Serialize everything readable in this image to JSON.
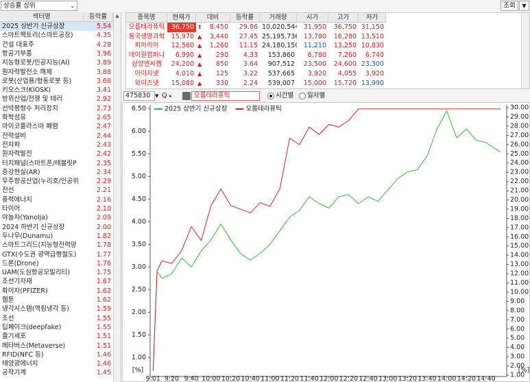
{
  "toolbar": {
    "filter": "상승률 상위",
    "query_button": "조회"
  },
  "sector_table": {
    "headers": [
      "섹터명",
      "등락률"
    ],
    "rows": [
      [
        "2025 상반기 신규상장",
        "5.54"
      ],
      [
        "스마트팩토리(스마트공장)",
        "4.35"
      ],
      [
        "건설 대표주",
        "4.28"
      ],
      [
        "항공기부품",
        "3.96"
      ],
      [
        "지능형로봇/인공지능(AI)",
        "3.89"
      ],
      [
        "원자력발전소 해체",
        "3.88"
      ],
      [
        "로봇(산업용/협동로봇 등)",
        "3.68"
      ],
      [
        "키오스크(KIOSK)",
        "3.41"
      ],
      [
        "방위산업/전쟁 및 테러",
        "2.92"
      ],
      [
        "선박평형수 처리장치",
        "2.73"
      ],
      [
        "화학섬유",
        "2.65"
      ],
      [
        "마이코플라스마 폐렴",
        "2.47"
      ],
      [
        "전력설비",
        "2.44"
      ],
      [
        "전자파",
        "2.43"
      ],
      [
        "원자력발전",
        "2.42"
      ],
      [
        "터치패널(스마트폰/태블릿P",
        "2.35"
      ],
      [
        "증강현실(AR)",
        "2.34"
      ],
      [
        "우주항공산업(누리호/인공위",
        "2.29"
      ],
      [
        "전선",
        "2.21"
      ],
      [
        "풍력에너지",
        "2.16"
      ],
      [
        "타이어",
        "2.10"
      ],
      [
        "야놀자(Yanolja)",
        "2.09"
      ],
      [
        "2024 하반기 신규상장",
        "2.00"
      ],
      [
        "두나무(Dunamu)",
        "1.82"
      ],
      [
        "스마트그리드(지능형전력망",
        "1.78"
      ],
      [
        "GTX(수도권 광역급행철도)",
        "1.77"
      ],
      [
        "드론(Drone)",
        "1.76"
      ],
      [
        "UAM(도심항공모빌리티)",
        "1.75"
      ],
      [
        "조선기자재",
        "1.67"
      ],
      [
        "화이자(PFIZER)",
        "1.62"
      ],
      [
        "웹툰",
        "1.62"
      ],
      [
        "냉각시스템(액침냉각 등)",
        "1.59"
      ],
      [
        "조선",
        "1.55"
      ],
      [
        "딥페이크(deepfake)",
        "1.55"
      ],
      [
        "줄기세포",
        "1.51"
      ],
      [
        "메타버스(Metaverse)",
        "1.51"
      ],
      [
        "RFID(NFC 등)",
        "1.46"
      ],
      [
        "태양광에너지",
        "1.46"
      ],
      [
        "공작기계",
        "1.45"
      ]
    ]
  },
  "stock_table": {
    "headers": [
      "종목명",
      "현재가",
      "대비",
      "등락률",
      "거래량",
      "시가",
      "고가",
      "저가"
    ],
    "rows": [
      [
        "오름테라퓨틱",
        "36,750",
        "8,450",
        "29.86",
        "10,020,544",
        "31,950",
        "36,750",
        "31,150"
      ],
      [
        "동국생명과학",
        "15,970",
        "3,440",
        "27.45",
        "25,195,736",
        "13,780",
        "16,280",
        "13,510"
      ],
      [
        "피아이이",
        "12,560",
        "1,260",
        "11.15",
        "24,180,150",
        "11,210",
        "13,250",
        "10,830"
      ],
      [
        "데이원컴퍼니",
        "6,990",
        "290",
        "4.33",
        "153,860",
        "6,780",
        "7,260",
        "6,740"
      ],
      [
        "삼양엔씨켐",
        "24,200",
        "850",
        "3.64",
        "907,512",
        "23,500",
        "24,600",
        "23,300"
      ],
      [
        "아이지넷",
        "4,010",
        "125",
        "3.22",
        "537,665",
        "3,920",
        "4,055",
        "3,920"
      ],
      [
        "와이즈넷",
        "15,080",
        "330",
        "2.24",
        "539,007",
        "15,000",
        "15,720",
        "13,990"
      ]
    ]
  },
  "chart_toolbar": {
    "code": "475830",
    "stock_name": "오름테라퓨틱",
    "options": [
      "시간별",
      "일자별"
    ]
  },
  "chart_data": {
    "type": "line",
    "x": [
      "9:01",
      "9:05",
      "9:10",
      "9:20",
      "9:30",
      "9:40",
      "9:50",
      "10:00",
      "10:10",
      "10:20",
      "10:30",
      "10:40",
      "10:50",
      "11:00",
      "11:10",
      "11:20",
      "11:30",
      "11:40",
      "11:50",
      "12:00",
      "12:10",
      "12:20",
      "12:30",
      "12:40",
      "12:50",
      "13:00",
      "13:10",
      "13:20",
      "13:30",
      "13:40",
      "13:50",
      "14:00",
      "14:10",
      "14:20",
      "14:30",
      "14:40",
      "14:50",
      "14:55"
    ],
    "xlim": [
      "8:58",
      "15:01"
    ],
    "xticks": [
      "9:01",
      "9:20",
      "9:40",
      "10:00",
      "10:20",
      "10:40",
      "11:00",
      "11:20",
      "11:40",
      "12:00",
      "12:20",
      "12:40",
      "13:00",
      "13:20",
      "13:40",
      "14:00",
      "14:20",
      "14:40"
    ],
    "ylim": [
      0.58,
      6.58
    ],
    "yticks": [
      {
        "value": 1,
        "label": "1.00"
      },
      {
        "value": 1.5,
        "label": "1.50"
      },
      {
        "value": 2,
        "label": "2.00"
      },
      {
        "value": 2.5,
        "label": "2.50"
      },
      {
        "value": 3,
        "label": "3.00"
      },
      {
        "value": 3.5,
        "label": "3.50"
      },
      {
        "value": 4,
        "label": "4.00"
      },
      {
        "value": 4.5,
        "label": "4.50"
      },
      {
        "value": 5,
        "label": "5.00"
      },
      {
        "value": 5.5,
        "label": "5.50"
      },
      {
        "value": 6,
        "label": "6.00"
      },
      {
        "value": 6.5,
        "label": "6.50"
      }
    ],
    "y2lim": [
      0.85,
      30.3
    ],
    "y2ticks": [
      {
        "value": 1,
        "label": "1.00"
      },
      {
        "value": 2,
        "label": "2.00"
      },
      {
        "value": 3,
        "label": "3.00"
      },
      {
        "value": 4,
        "label": "4.00"
      },
      {
        "value": 5,
        "label": "5.00"
      },
      {
        "value": 6,
        "label": "6.00"
      },
      {
        "value": 7,
        "label": "7.00"
      },
      {
        "value": 8,
        "label": "8.00"
      },
      {
        "value": 9,
        "label": "9.00"
      },
      {
        "value": 10,
        "label": "10.00"
      },
      {
        "value": 11,
        "label": "11.00"
      },
      {
        "value": 12,
        "label": "12.00"
      },
      {
        "value": 13,
        "label": "13.00"
      },
      {
        "value": 14,
        "label": "14.00"
      },
      {
        "value": 15,
        "label": "15.00"
      },
      {
        "value": 16,
        "label": "16.00"
      },
      {
        "value": 17,
        "label": "17.00"
      },
      {
        "value": 18,
        "label": "18.00"
      },
      {
        "value": 19,
        "label": "19.00"
      },
      {
        "value": 20,
        "label": "20.00"
      },
      {
        "value": 21,
        "label": "21.00"
      },
      {
        "value": 22,
        "label": "22.00"
      },
      {
        "value": 23,
        "label": "23.00"
      },
      {
        "value": 24,
        "label": "24.00"
      },
      {
        "value": 25,
        "label": "25.00"
      },
      {
        "value": 26,
        "label": "26.00"
      },
      {
        "value": 27,
        "label": "27.00"
      },
      {
        "value": 28,
        "label": "28.00"
      },
      {
        "value": 29,
        "label": "29.00"
      },
      {
        "value": 30,
        "label": "30.00"
      }
    ],
    "ylabel": "[%]",
    "y2label": "[%]",
    "grid": false,
    "legend": "top-left",
    "series": [
      {
        "name": "2025 상반기 신규상장",
        "color": "#33bb33",
        "values": [
          0.7,
          2.9,
          2.75,
          2.85,
          3.2,
          3.0,
          3.35,
          3.6,
          3.95,
          3.6,
          3.3,
          3.15,
          3.3,
          3.5,
          3.8,
          4.1,
          4.25,
          4.55,
          4.4,
          4.3,
          4.55,
          4.6,
          4.4,
          4.55,
          4.45,
          4.7,
          4.95,
          5.1,
          5.15,
          5.45,
          6.05,
          6.45,
          5.85,
          6.05,
          5.8,
          5.75,
          5.6,
          5.54
        ]
      },
      {
        "name": "오름테라퓨틱",
        "color": "#e02020",
        "axis": "y2",
        "values": [
          1.5,
          12.3,
          13.4,
          13.1,
          14.5,
          17.1,
          15.6,
          19.4,
          21.2,
          19.4,
          19.0,
          18.6,
          19.7,
          19.3,
          21.2,
          26.7,
          26.0,
          27.9,
          27.1,
          28.2,
          27.9,
          28.6,
          29.86,
          29.86,
          29.86,
          29.86,
          29.86,
          29.86,
          29.86,
          29.86,
          29.86,
          29.86,
          29.86,
          29.86,
          29.86,
          29.86,
          29.86,
          29.86
        ]
      }
    ]
  }
}
